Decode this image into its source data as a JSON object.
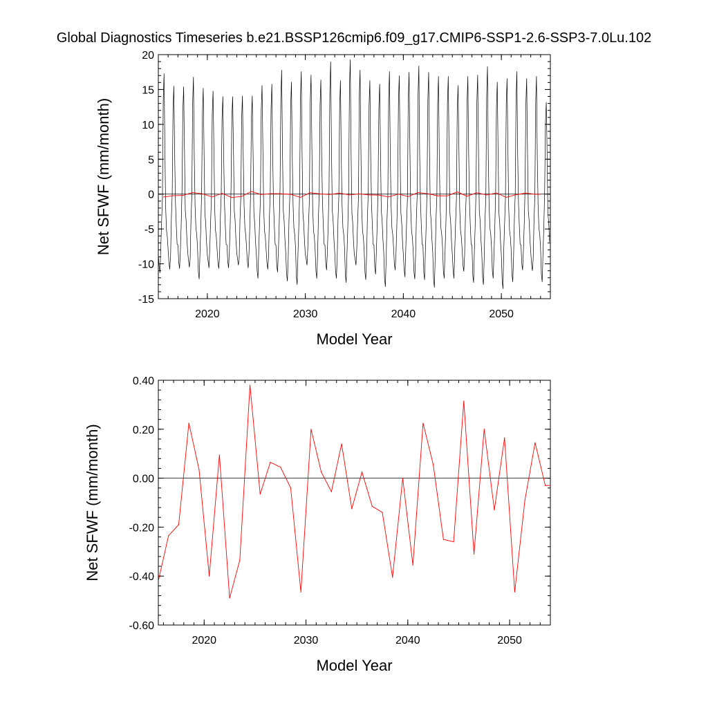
{
  "title": "Global Diagnostics Timeseries b.e21.BSSP126cmip6.f09_g17.CMIP6-SSP1-2.6-SSP3-7.0Lu.102",
  "chart_data": [
    {
      "type": "line",
      "title": "Global Diagnostics Timeseries b.e21.BSSP126cmip6.f09_g17.CMIP6-SSP1-2.6-SSP3-7.0Lu.102",
      "xlabel": "Model Year",
      "ylabel": "Net SFWF (mm/month)",
      "xlim": [
        2015,
        2055
      ],
      "ylim": [
        -15,
        20
      ],
      "x_ticks": [
        "2020",
        "2030",
        "2040",
        "2050"
      ],
      "y_ticks": [
        "-15",
        "-10",
        "-5",
        "0",
        "5",
        "10",
        "15",
        "20"
      ],
      "zero_line": true,
      "grid": false,
      "colors": {
        "monthly": "#000000",
        "annual": "#ff0000"
      },
      "monthly_series": {
        "start_year": 2015,
        "seasonal_cycle": [
          -8.0,
          -10.5,
          -11.5,
          -8.5,
          -4.0,
          0.0,
          12.0,
          15.5,
          6.0,
          -2.0,
          -4.5,
          -6.5
        ],
        "annual_peak": [
          17.3,
          15.5,
          15.4,
          16.8,
          15.2,
          14.8,
          14.0,
          14.0,
          14.1,
          14.1,
          15.6,
          15.8,
          17.8,
          16.1,
          17.6,
          17.1,
          16.4,
          19.0,
          16.3,
          19.3,
          17.8,
          16.3,
          15.8,
          17.6,
          17.0,
          17.5,
          18.4,
          17.5,
          16.9,
          16.9,
          15.6,
          16.9,
          17.1,
          18.3,
          16.1,
          16.6,
          17.6,
          16.6,
          16.9,
          13.2
        ],
        "annual_trough": [
          -11.3,
          -10.8,
          -10.7,
          -10.5,
          -12.2,
          -10.6,
          -10.7,
          -10.6,
          -10.2,
          -10.6,
          -12.1,
          -10.8,
          -11.2,
          -12.5,
          -13.0,
          -10.2,
          -12.1,
          -10.9,
          -12.1,
          -12.7,
          -10.2,
          -12.3,
          -11.5,
          -13.3,
          -10.9,
          -11.9,
          -12.2,
          -12.3,
          -13.4,
          -12.1,
          -12.1,
          -11.1,
          -12.7,
          -13.0,
          -12.1,
          -13.6,
          -12.6,
          -10.9,
          -11.0,
          -12.6
        ]
      }
    },
    {
      "type": "line",
      "xlabel": "Model Year",
      "ylabel": "Net SFWF (mm/month)",
      "xlim": [
        2015.5,
        2054
      ],
      "ylim": [
        -0.6,
        0.4
      ],
      "x_ticks": [
        "2020",
        "2030",
        "2040",
        "2050"
      ],
      "y_ticks": [
        "-0.60",
        "-0.40",
        "-0.20",
        "0.00",
        "0.20",
        "0.40"
      ],
      "zero_line": true,
      "grid": false,
      "colors": {
        "annual": "#ff0000"
      },
      "x": [
        2015.5,
        2016.5,
        2017.5,
        2018.5,
        2019.5,
        2020.5,
        2021.5,
        2022.5,
        2023.5,
        2024.5,
        2025.5,
        2026.5,
        2027.5,
        2028.5,
        2029.5,
        2030.5,
        2031.5,
        2032.5,
        2033.5,
        2034.5,
        2035.5,
        2036.5,
        2037.5,
        2038.5,
        2039.5,
        2040.5,
        2041.5,
        2042.5,
        2043.5,
        2044.5,
        2045.5,
        2046.5,
        2047.5,
        2048.5,
        2049.5,
        2050.5,
        2051.5,
        2052.5,
        2053.5,
        2054.0
      ],
      "values": [
        -0.42,
        -0.235,
        -0.19,
        0.225,
        0.035,
        -0.4,
        0.095,
        -0.49,
        -0.335,
        0.38,
        -0.065,
        0.065,
        0.045,
        -0.04,
        -0.465,
        0.2,
        0.025,
        -0.055,
        0.14,
        -0.125,
        0.025,
        -0.115,
        -0.14,
        -0.405,
        0.0,
        -0.355,
        0.225,
        0.055,
        -0.25,
        -0.26,
        0.315,
        -0.31,
        0.2,
        -0.13,
        0.165,
        -0.465,
        -0.09,
        0.145,
        -0.03,
        -0.03
      ]
    }
  ]
}
